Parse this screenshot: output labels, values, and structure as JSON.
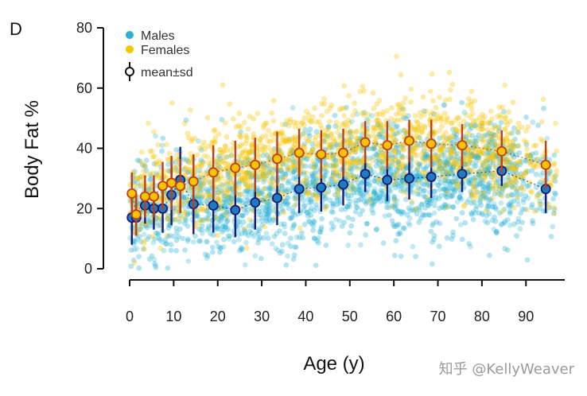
{
  "panel_label": "D",
  "watermark": "知乎 @KellyWeaver",
  "chart_data": {
    "type": "scatter",
    "title": "",
    "xlabel": "Age (y)",
    "ylabel": "Body Fat %",
    "xlim": [
      0,
      97
    ],
    "ylim": [
      0,
      80
    ],
    "x_ticks": [
      0,
      10,
      20,
      30,
      40,
      50,
      60,
      70,
      80,
      90
    ],
    "y_ticks": [
      0,
      20,
      40,
      60,
      80
    ],
    "legend": {
      "position": "top-left",
      "entries": [
        {
          "label": "Males",
          "color": "#29b1d4",
          "marker": "filled-circle"
        },
        {
          "label": "Females",
          "color": "#f5c400",
          "marker": "filled-circle"
        },
        {
          "label": "mean±sd",
          "color": "#111111",
          "marker": "open-circle-with-errorbar"
        }
      ]
    },
    "series": [
      {
        "name": "Males",
        "point_color": "#29b1d4",
        "summary_fill": "#1c7cc0",
        "errorbar_color": "#1a1a7a",
        "trend_color": "#1a3a8a",
        "x": [
          0.5,
          1.5,
          3.5,
          5.5,
          7.5,
          9.5,
          11.5,
          14.5,
          19,
          24,
          28.5,
          33.5,
          38.5,
          43.5,
          48.5,
          53.5,
          58.5,
          63.5,
          68.5,
          75.5,
          84.5,
          94.5
        ],
        "mean": [
          17,
          17,
          21,
          20,
          20,
          24.5,
          29.5,
          21.5,
          21,
          19.5,
          22,
          23.5,
          26.5,
          27,
          28,
          31.5,
          29.5,
          30,
          30.5,
          31.5,
          32.5,
          26.5
        ],
        "sd": [
          9,
          6,
          6,
          7,
          8,
          10,
          11,
          10,
          9,
          9,
          9,
          9,
          8,
          8,
          7,
          6,
          7,
          7,
          7,
          6,
          5,
          8
        ]
      },
      {
        "name": "Females",
        "point_color": "#f5c400",
        "summary_fill": "#f5c400",
        "errorbar_color": "#c0401a",
        "trend_color": "#c0401a",
        "x": [
          0.5,
          1.5,
          3.5,
          5.5,
          7.5,
          9.5,
          11.5,
          14.5,
          19,
          24,
          28.5,
          33.5,
          38.5,
          43.5,
          48.5,
          53.5,
          58.5,
          63.5,
          68.5,
          75.5,
          84.5,
          94.5
        ],
        "mean": [
          25,
          18,
          24,
          24,
          27.5,
          28.5,
          27.5,
          29,
          32,
          33.5,
          34.5,
          36.5,
          38.5,
          38,
          38.5,
          42,
          41,
          42.5,
          41.5,
          41,
          39,
          34.5
        ],
        "sd": [
          7,
          7,
          7,
          7,
          8,
          9,
          9,
          9,
          9,
          9,
          9,
          9,
          8,
          8,
          8,
          7,
          8,
          7,
          8,
          7,
          7,
          8
        ]
      }
    ],
    "cloud": [
      {
        "series": "Males",
        "ages": [
          0,
          97
        ],
        "mean_curve": [
          [
            0,
            17
          ],
          [
            10,
            22
          ],
          [
            20,
            21
          ],
          [
            30,
            22
          ],
          [
            40,
            26
          ],
          [
            50,
            29
          ],
          [
            60,
            30
          ],
          [
            70,
            31
          ],
          [
            80,
            32
          ],
          [
            95,
            27
          ]
        ],
        "sd": 9
      },
      {
        "series": "Females",
        "ages": [
          0,
          97
        ],
        "mean_curve": [
          [
            0,
            22
          ],
          [
            10,
            28
          ],
          [
            20,
            32
          ],
          [
            30,
            35
          ],
          [
            40,
            38
          ],
          [
            50,
            40
          ],
          [
            60,
            42
          ],
          [
            70,
            42
          ],
          [
            80,
            40
          ],
          [
            95,
            35
          ]
        ],
        "sd": 8
      }
    ]
  }
}
